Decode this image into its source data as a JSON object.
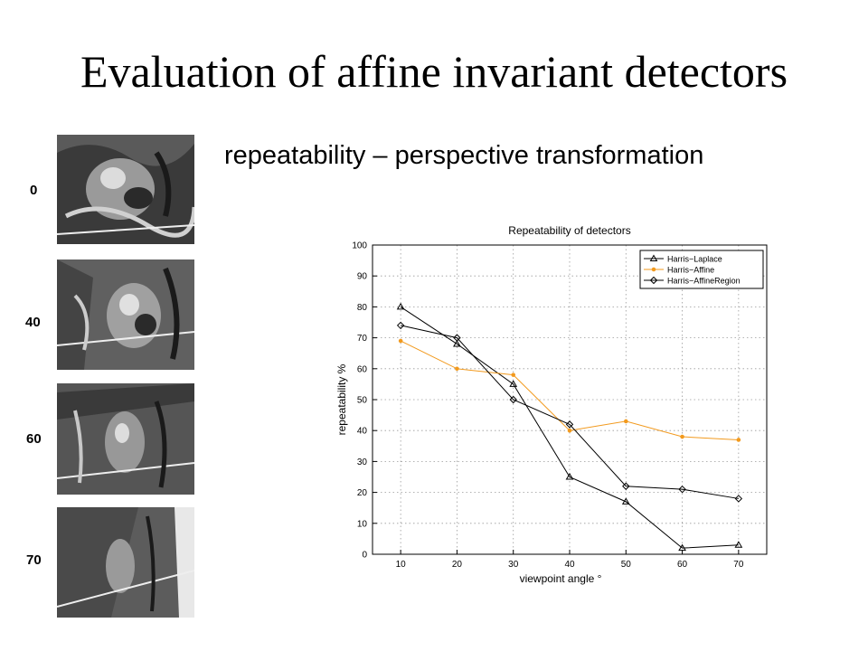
{
  "slide": {
    "title": "Evaluation of affine invariant detectors",
    "subtitle": "repeatability – perspective transformation"
  },
  "thumbnails": [
    {
      "label": "0"
    },
    {
      "label": "40"
    },
    {
      "label": "60"
    },
    {
      "label": "70"
    }
  ],
  "chart_data": {
    "type": "line",
    "title": "Repeatability of detectors",
    "xlabel": "viewpoint angle °",
    "ylabel": "repeatability %",
    "x": [
      10,
      20,
      30,
      40,
      50,
      60,
      70
    ],
    "xlim": [
      5,
      75
    ],
    "ylim": [
      0,
      100
    ],
    "xticks": [
      10,
      20,
      30,
      40,
      50,
      60,
      70
    ],
    "yticks": [
      0,
      10,
      20,
      30,
      40,
      50,
      60,
      70,
      80,
      90,
      100
    ],
    "grid": true,
    "legend_position": "top-right",
    "series": [
      {
        "name": "Harris−Laplace",
        "values": [
          80,
          68,
          55,
          25,
          17,
          2,
          3
        ],
        "color": "#000000",
        "marker": "triangle"
      },
      {
        "name": "Harris−Affine",
        "values": [
          69,
          60,
          58,
          40,
          43,
          38,
          37
        ],
        "color": "#f29a1e",
        "marker": "dot"
      },
      {
        "name": "Harris−AffineRegion",
        "values": [
          74,
          70,
          50,
          42,
          22,
          21,
          18
        ],
        "color": "#000000",
        "marker": "diamond"
      }
    ]
  }
}
